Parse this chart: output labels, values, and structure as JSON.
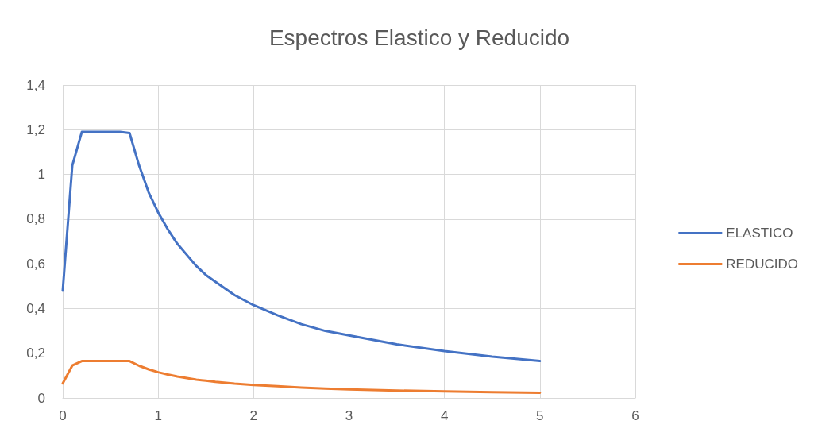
{
  "chart_data": {
    "type": "line",
    "title": "Espectros Elastico y Reducido",
    "xlim": [
      0,
      6
    ],
    "xticks": [
      0,
      1,
      2,
      3,
      4,
      5,
      6
    ],
    "ylim": [
      0,
      1.4
    ],
    "yticks": [
      0,
      {
        "value": 0.2,
        "label": "0,2"
      },
      {
        "value": 0.4,
        "label": "0,4"
      },
      {
        "value": 0.6,
        "label": "0,6"
      },
      {
        "value": 0.8,
        "label": "0,8"
      },
      1,
      {
        "value": 1.2,
        "label": "1,2"
      },
      {
        "value": 1.4,
        "label": "1,4"
      }
    ],
    "grid": true,
    "legend": "right",
    "marker": "none",
    "x": [
      0,
      0.1,
      0.2,
      0.3,
      0.4,
      0.5,
      0.6,
      0.7,
      0.8,
      0.9,
      1.0,
      1.1,
      1.2,
      1.3,
      1.4,
      1.5,
      1.6,
      1.8,
      2.0,
      2.25,
      2.5,
      2.75,
      3.0,
      3.5,
      4.0,
      4.5,
      5.0
    ],
    "series": [
      {
        "name": "ELASTICO",
        "color": "#4472c4",
        "values": [
          0.48,
          1.04,
          1.19,
          1.19,
          1.19,
          1.19,
          1.19,
          1.185,
          1.04,
          0.92,
          0.83,
          0.755,
          0.69,
          0.64,
          0.59,
          0.55,
          0.52,
          0.46,
          0.415,
          0.37,
          0.33,
          0.3,
          0.28,
          0.24,
          0.21,
          0.185,
          0.165
        ]
      },
      {
        "name": "REDUCIDO",
        "color": "#ed7d31",
        "values": [
          0.065,
          0.145,
          0.165,
          0.165,
          0.165,
          0.165,
          0.165,
          0.165,
          0.144,
          0.128,
          0.115,
          0.105,
          0.096,
          0.089,
          0.082,
          0.077,
          0.072,
          0.064,
          0.058,
          0.052,
          0.046,
          0.042,
          0.038,
          0.033,
          0.029,
          0.026,
          0.023
        ]
      }
    ]
  }
}
